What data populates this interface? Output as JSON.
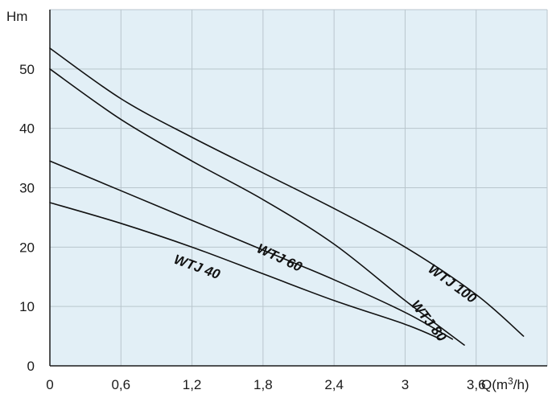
{
  "chart_data": {
    "type": "line",
    "title": "",
    "ylabel": "Hm",
    "xlabel_prefix": "Q(m",
    "xlabel_sup": "3",
    "xlabel_suffix": "/h)",
    "xlim": [
      0,
      4.2
    ],
    "ylim": [
      0,
      60
    ],
    "grid": true,
    "x_ticks": [
      0,
      0.6,
      1.2,
      1.8,
      2.4,
      3,
      3.6
    ],
    "x_tick_labels": [
      "0",
      "0,6",
      "1,2",
      "1,8",
      "2,4",
      "3",
      "3,6"
    ],
    "y_ticks": [
      0,
      10,
      20,
      30,
      40,
      50
    ],
    "y_tick_labels": [
      "0",
      "10",
      "20",
      "30",
      "40",
      "50"
    ],
    "series": [
      {
        "name": "WTJ 40",
        "points": [
          [
            0,
            27.5
          ],
          [
            0.6,
            24
          ],
          [
            1.2,
            20
          ],
          [
            1.8,
            15.5
          ],
          [
            2.4,
            11
          ],
          [
            3.0,
            7
          ],
          [
            3.3,
            4.5
          ]
        ]
      },
      {
        "name": "WTJ 60",
        "points": [
          [
            0,
            34.5
          ],
          [
            0.6,
            29.5
          ],
          [
            1.2,
            24.5
          ],
          [
            1.8,
            19.5
          ],
          [
            2.4,
            14.5
          ],
          [
            3.0,
            9
          ],
          [
            3.4,
            4.5
          ]
        ]
      },
      {
        "name": "WTJ 80",
        "points": [
          [
            0,
            50
          ],
          [
            0.6,
            41.5
          ],
          [
            1.2,
            34.5
          ],
          [
            1.8,
            28
          ],
          [
            2.4,
            20.5
          ],
          [
            3.0,
            11
          ],
          [
            3.5,
            3.5
          ]
        ]
      },
      {
        "name": "WTJ 100",
        "points": [
          [
            0,
            53.5
          ],
          [
            0.6,
            45
          ],
          [
            1.2,
            38.5
          ],
          [
            1.8,
            32.5
          ],
          [
            2.4,
            26.5
          ],
          [
            3.0,
            20
          ],
          [
            3.6,
            12
          ],
          [
            4.0,
            5
          ]
        ]
      }
    ]
  }
}
